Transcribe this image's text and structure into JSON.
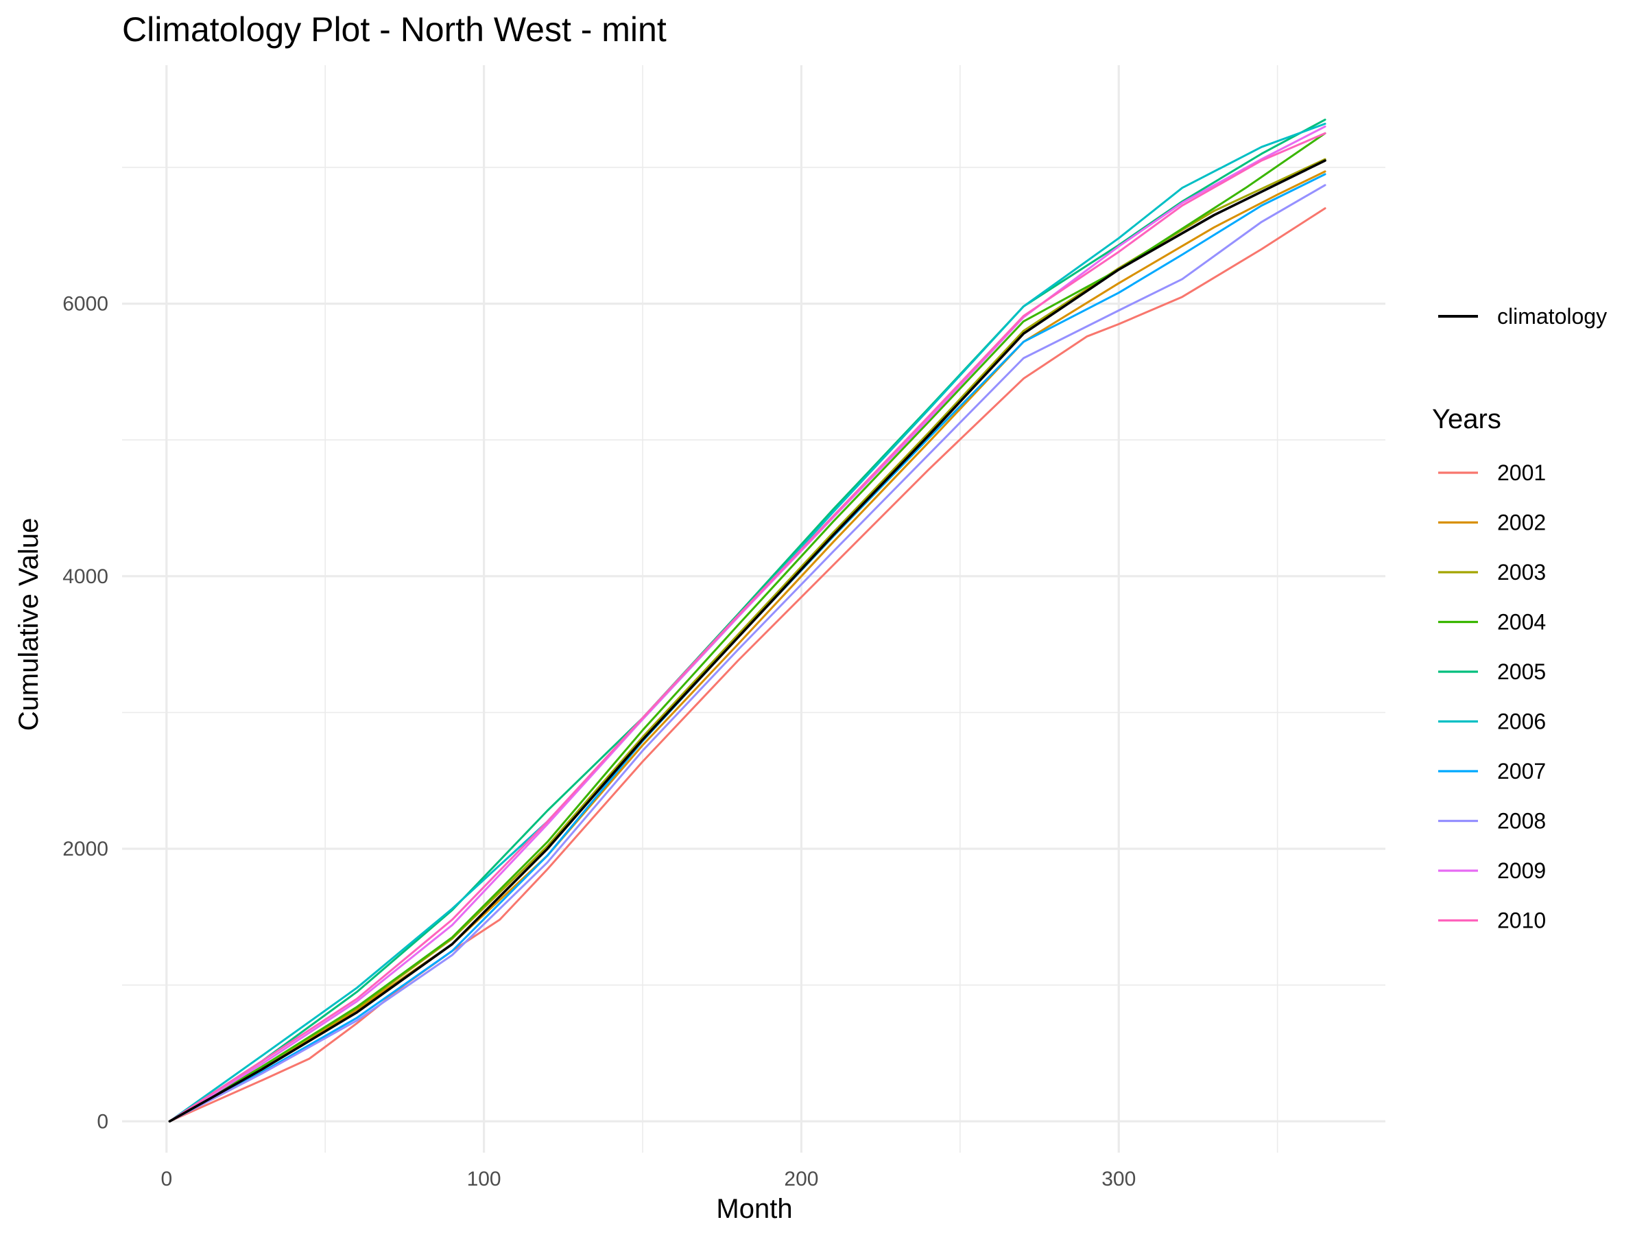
{
  "chart_data": {
    "type": "line",
    "title": "Climatology Plot - North West - mint",
    "xlabel": "Month",
    "ylabel": "Cumulative Value",
    "xlim": [
      -14,
      384
    ],
    "ylim": [
      -230,
      7750
    ],
    "x_ticks": [
      0,
      100,
      200,
      300
    ],
    "x_tick_labels": [
      "0",
      "100",
      "200",
      "300"
    ],
    "x_minor_ticks": [
      50,
      150,
      250,
      350
    ],
    "y_ticks": [
      0,
      2000,
      4000,
      6000
    ],
    "y_tick_labels": [
      "0",
      "2000",
      "4000",
      "6000"
    ],
    "y_minor_ticks": [
      1000,
      3000,
      5000,
      7000
    ],
    "grid": true,
    "legend_position": "right",
    "legend_title": "Years",
    "climatology": {
      "name": "climatology",
      "color": "#000000",
      "x": [
        1,
        30,
        60,
        90,
        120,
        150,
        180,
        210,
        240,
        270,
        300,
        330,
        365
      ],
      "values": [
        0,
        380,
        800,
        1300,
        2000,
        2800,
        3550,
        4300,
        5030,
        5780,
        6250,
        6650,
        7050
      ]
    },
    "series": [
      {
        "name": "2001",
        "color": "#F8766D",
        "x": [
          1,
          30,
          45,
          60,
          75,
          90,
          105,
          120,
          150,
          180,
          210,
          240,
          270,
          290,
          300,
          320,
          345,
          365
        ],
        "values": [
          0,
          300,
          460,
          720,
          1000,
          1250,
          1480,
          1850,
          2640,
          3380,
          4080,
          4780,
          5450,
          5760,
          5850,
          6050,
          6400,
          6700
        ]
      },
      {
        "name": "2002",
        "color": "#D89000",
        "x": [
          1,
          30,
          60,
          90,
          120,
          150,
          180,
          210,
          240,
          270,
          300,
          330,
          350,
          365
        ],
        "values": [
          0,
          380,
          820,
          1300,
          1950,
          2760,
          3500,
          4250,
          4980,
          5720,
          6150,
          6560,
          6800,
          6970
        ]
      },
      {
        "name": "2003",
        "color": "#A3A500",
        "x": [
          1,
          30,
          60,
          90,
          120,
          150,
          180,
          210,
          240,
          270,
          300,
          330,
          365
        ],
        "values": [
          0,
          400,
          830,
          1340,
          2020,
          2820,
          3570,
          4320,
          5050,
          5800,
          6260,
          6680,
          7060
        ]
      },
      {
        "name": "2004",
        "color": "#39B600",
        "x": [
          1,
          30,
          60,
          90,
          120,
          150,
          180,
          210,
          240,
          270,
          300,
          320,
          340,
          365
        ],
        "values": [
          0,
          400,
          840,
          1350,
          2050,
          2870,
          3640,
          4400,
          5130,
          5870,
          6250,
          6550,
          6850,
          7250
        ]
      },
      {
        "name": "2005",
        "color": "#00BF7D",
        "x": [
          1,
          30,
          60,
          90,
          120,
          135,
          150,
          180,
          210,
          240,
          270,
          300,
          320,
          345,
          365
        ],
        "values": [
          0,
          440,
          950,
          1550,
          2280,
          2620,
          2960,
          3720,
          4490,
          5230,
          5980,
          6430,
          6750,
          7100,
          7350
        ]
      },
      {
        "name": "2006",
        "color": "#00BFC4",
        "x": [
          1,
          30,
          60,
          90,
          120,
          150,
          180,
          210,
          240,
          270,
          300,
          320,
          345,
          365
        ],
        "values": [
          0,
          480,
          980,
          1560,
          2200,
          2950,
          3700,
          4470,
          5220,
          5980,
          6480,
          6850,
          7150,
          7320
        ]
      },
      {
        "name": "2007",
        "color": "#00A9FF",
        "x": [
          1,
          30,
          60,
          90,
          120,
          150,
          180,
          210,
          240,
          270,
          300,
          320,
          345,
          365
        ],
        "values": [
          0,
          360,
          760,
          1250,
          1950,
          2790,
          3550,
          4290,
          5010,
          5720,
          6080,
          6360,
          6720,
          6950
        ]
      },
      {
        "name": "2008",
        "color": "#9590FF",
        "x": [
          1,
          30,
          60,
          90,
          120,
          150,
          180,
          210,
          240,
          270,
          300,
          320,
          345,
          365
        ],
        "values": [
          0,
          350,
          740,
          1220,
          1900,
          2720,
          3460,
          4180,
          4890,
          5600,
          5950,
          6180,
          6600,
          6870
        ]
      },
      {
        "name": "2009",
        "color": "#E76BF3",
        "x": [
          1,
          30,
          60,
          90,
          120,
          150,
          180,
          210,
          240,
          270,
          300,
          320,
          345,
          365
        ],
        "values": [
          0,
          420,
          880,
          1440,
          2180,
          2950,
          3700,
          4430,
          5150,
          5900,
          6420,
          6740,
          7060,
          7300
        ]
      },
      {
        "name": "2010",
        "color": "#FF62BC",
        "x": [
          1,
          30,
          60,
          90,
          120,
          150,
          180,
          210,
          240,
          270,
          300,
          320,
          345,
          365
        ],
        "values": [
          0,
          440,
          900,
          1480,
          2200,
          2960,
          3710,
          4440,
          5170,
          5910,
          6380,
          6720,
          7050,
          7250
        ]
      }
    ]
  }
}
